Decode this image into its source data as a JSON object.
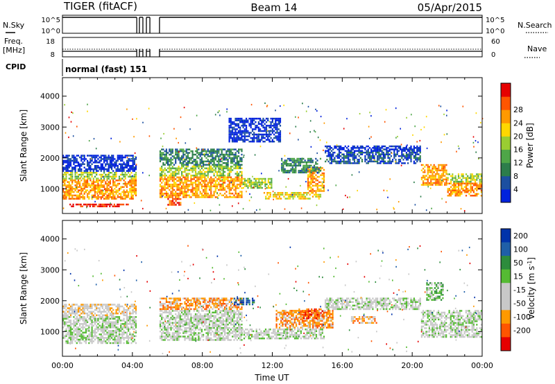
{
  "header": {
    "title": "TIGER (fitACF)",
    "beam": "Beam 14",
    "date": "05/Apr/2015"
  },
  "status_panels": {
    "nsky_label": "N.Sky",
    "nsearch_label": "N.Search",
    "freq_label_1": "Freq.",
    "freq_label_2": "[MHz]",
    "nave_label": "Nave",
    "cpid_label": "CPID",
    "cpid_value": "normal (fast) 151",
    "noise_ticks": [
      "10^5",
      "10^0"
    ],
    "freq_ticks": [
      "18",
      "8"
    ],
    "nave_ticks": [
      "60",
      "0"
    ],
    "data_gaps_ut": [
      [
        4.25,
        4.4
      ],
      [
        4.6,
        4.8
      ],
      [
        5.0,
        5.55
      ]
    ]
  },
  "colors": {
    "power_scale": [
      "#0022dd",
      "#1c4fa0",
      "#2c7d4b",
      "#4ea648",
      "#9acd32",
      "#ffd700",
      "#ff9900",
      "#ff5500",
      "#e60000"
    ],
    "velocity_scale": [
      "#0033aa",
      "#1f5fa8",
      "#2d8c3c",
      "#55bb33",
      "#c8c8c8",
      "#c8c8c8",
      "#ff9900",
      "#ff5500",
      "#e60000"
    ]
  },
  "chart_data": [
    {
      "type": "heatmap",
      "parameter": "power",
      "xlabel": "",
      "ylabel": "Slant Range [km]",
      "xlim": [
        0,
        24
      ],
      "ylim": [
        200,
        4600
      ],
      "x_ticks": [],
      "y_ticks": [
        "1000",
        "2000",
        "3000",
        "4000"
      ],
      "colorbar": {
        "label": "Power [dB]",
        "ticks": [
          "4",
          "8",
          "12",
          "16",
          "20",
          "24",
          "28"
        ]
      },
      "bands": [
        {
          "t0": 0.0,
          "t1": 4.25,
          "r_lo": 650,
          "r_hi": 1300,
          "level": 6
        },
        {
          "t0": 0.0,
          "t1": 4.25,
          "r_lo": 1300,
          "r_hi": 1550,
          "level": 4
        },
        {
          "t0": 0.0,
          "t1": 4.25,
          "r_lo": 1550,
          "r_hi": 2100,
          "level": 0
        },
        {
          "t0": 0.4,
          "t1": 3.8,
          "r_lo": 400,
          "r_hi": 520,
          "level": 8
        },
        {
          "t0": 5.55,
          "t1": 10.3,
          "r_lo": 700,
          "r_hi": 1400,
          "level": 6
        },
        {
          "t0": 5.55,
          "t1": 10.3,
          "r_lo": 1400,
          "r_hi": 1750,
          "level": 4
        },
        {
          "t0": 5.55,
          "t1": 10.3,
          "r_lo": 1750,
          "r_hi": 2300,
          "level": 2
        },
        {
          "t0": 6.0,
          "t1": 6.8,
          "r_lo": 450,
          "r_hi": 700,
          "level": 7
        },
        {
          "t0": 10.3,
          "t1": 12.0,
          "r_lo": 1000,
          "r_hi": 1350,
          "level": 4
        },
        {
          "t0": 11.5,
          "t1": 14.8,
          "r_lo": 650,
          "r_hi": 900,
          "level": 5
        },
        {
          "t0": 14.0,
          "t1": 15.0,
          "r_lo": 900,
          "r_hi": 1700,
          "level": 6
        },
        {
          "t0": 12.5,
          "t1": 14.8,
          "r_lo": 1500,
          "r_hi": 2000,
          "level": 2
        },
        {
          "t0": 15.0,
          "t1": 20.5,
          "r_lo": 1800,
          "r_hi": 2200,
          "level": 1
        },
        {
          "t0": 15.0,
          "t1": 20.5,
          "r_lo": 2200,
          "r_hi": 2400,
          "level": 0
        },
        {
          "t0": 20.5,
          "t1": 22.0,
          "r_lo": 1100,
          "r_hi": 1800,
          "level": 6
        },
        {
          "t0": 22.0,
          "t1": 24.0,
          "r_lo": 750,
          "r_hi": 1200,
          "level": 6
        },
        {
          "t0": 22.0,
          "t1": 24.0,
          "r_lo": 1200,
          "r_hi": 1500,
          "level": 4
        },
        {
          "t0": 9.5,
          "t1": 12.5,
          "r_lo": 2500,
          "r_hi": 3300,
          "level": 0
        }
      ]
    },
    {
      "type": "heatmap",
      "parameter": "velocity",
      "xlabel": "Time UT",
      "ylabel": "Slant Range [km]",
      "xlim": [
        0,
        24
      ],
      "ylim": [
        200,
        4600
      ],
      "x_ticks": [
        "00:00",
        "04:00",
        "08:00",
        "12:00",
        "16:00",
        "20:00",
        "00:00"
      ],
      "y_ticks": [
        "1000",
        "2000",
        "3000",
        "4000"
      ],
      "colorbar": {
        "label": "Velocity [m s",
        "label_sup": "-1",
        "label_end": "]",
        "ticks": [
          "200",
          "100",
          "50",
          "15",
          "-15",
          "-50",
          "-100",
          "-200"
        ]
      },
      "bands": [
        {
          "t0": 0.0,
          "t1": 4.25,
          "r_lo": 600,
          "r_hi": 1500,
          "level": 4
        },
        {
          "t0": 0.0,
          "t1": 4.25,
          "r_lo": 1500,
          "r_hi": 1900,
          "level": 5
        },
        {
          "t0": 5.55,
          "t1": 10.3,
          "r_lo": 700,
          "r_hi": 1700,
          "level": 4
        },
        {
          "t0": 5.55,
          "t1": 10.3,
          "r_lo": 1700,
          "r_hi": 2100,
          "level": 6
        },
        {
          "t0": 10.0,
          "t1": 15.0,
          "r_lo": 750,
          "r_hi": 1100,
          "level": 4
        },
        {
          "t0": 12.2,
          "t1": 15.5,
          "r_lo": 1100,
          "r_hi": 1700,
          "level": 6
        },
        {
          "t0": 13.5,
          "t1": 15.0,
          "r_lo": 1400,
          "r_hi": 1750,
          "level": 7
        },
        {
          "t0": 15.0,
          "t1": 20.5,
          "r_lo": 1700,
          "r_hi": 2100,
          "level": 4
        },
        {
          "t0": 16.5,
          "t1": 18.0,
          "r_lo": 1250,
          "r_hi": 1500,
          "level": 6
        },
        {
          "t0": 20.5,
          "t1": 24.0,
          "r_lo": 800,
          "r_hi": 1700,
          "level": 4
        },
        {
          "t0": 9.8,
          "t1": 11.0,
          "r_lo": 1850,
          "r_hi": 2100,
          "level": 1
        },
        {
          "t0": 20.8,
          "t1": 21.8,
          "r_lo": 2000,
          "r_hi": 2600,
          "level": 3
        }
      ]
    }
  ]
}
